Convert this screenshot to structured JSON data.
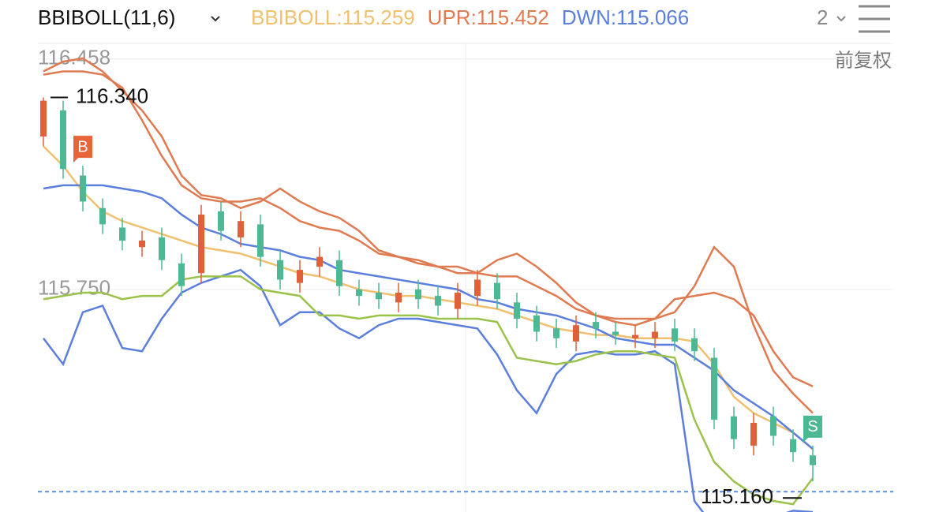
{
  "chart_data": {
    "type": "candlestick",
    "indicator": "BBIBOLL(11,6)",
    "period": "2",
    "adjust_label": "前复权",
    "ylim": [
      115.066,
      116.506
    ],
    "yticks": [
      116.458,
      {
        "value": 115.75,
        "label": "115.750"
      }
    ],
    "high_label": {
      "value": 116.34,
      "label": "116.340"
    },
    "low_label": {
      "value": 115.16,
      "label": "115.160"
    },
    "markers": [
      {
        "text": "B",
        "index": 2,
        "value": 116.13,
        "color": "#e8643a"
      },
      {
        "text": "S",
        "index": 39,
        "value": 115.27,
        "color": "#4cb894"
      }
    ],
    "up_color": "#e0603a",
    "down_color": "#4cb894",
    "open": [
      116.22,
      116.3,
      116.1,
      116.0,
      115.94,
      115.88,
      115.91,
      115.83,
      115.8,
      115.99,
      115.91,
      115.95,
      115.84,
      115.77,
      115.82,
      115.84,
      115.75,
      115.74,
      115.71,
      115.75,
      115.73,
      115.69,
      115.73,
      115.77,
      115.71,
      115.67,
      115.63,
      115.59,
      115.65,
      115.62,
      115.6,
      115.6,
      115.63,
      115.6,
      115.54,
      115.36,
      115.27,
      115.36,
      115.29,
      115.24
    ],
    "high": [
      116.34,
      116.33,
      116.13,
      116.03,
      115.97,
      115.93,
      115.94,
      115.86,
      116.01,
      116.02,
      115.99,
      115.98,
      115.87,
      115.84,
      115.88,
      115.87,
      115.78,
      115.77,
      115.77,
      115.78,
      115.76,
      115.77,
      115.81,
      115.8,
      115.74,
      115.7,
      115.66,
      115.67,
      115.68,
      115.65,
      115.64,
      115.65,
      115.66,
      115.63,
      115.57,
      115.39,
      115.37,
      115.39,
      115.32,
      115.27
    ],
    "low": [
      116.19,
      116.09,
      115.99,
      115.92,
      115.87,
      115.85,
      115.81,
      115.73,
      115.77,
      115.9,
      115.88,
      115.82,
      115.75,
      115.74,
      115.79,
      115.73,
      115.7,
      115.69,
      115.68,
      115.69,
      115.67,
      115.66,
      115.7,
      115.69,
      115.63,
      115.59,
      115.57,
      115.56,
      115.6,
      115.58,
      115.57,
      115.57,
      115.56,
      115.53,
      115.32,
      115.26,
      115.24,
      115.27,
      115.22,
      115.16
    ],
    "close": [
      116.33,
      116.12,
      116.02,
      115.95,
      115.9,
      115.9,
      115.84,
      115.76,
      115.98,
      115.93,
      115.96,
      115.85,
      115.78,
      115.81,
      115.85,
      115.76,
      115.73,
      115.72,
      115.74,
      115.72,
      115.7,
      115.74,
      115.78,
      115.72,
      115.66,
      115.62,
      115.6,
      115.64,
      115.63,
      115.61,
      115.61,
      115.62,
      115.59,
      115.56,
      115.35,
      115.29,
      115.34,
      115.3,
      115.25,
      115.21
    ],
    "series": [
      {
        "name": "BBIBOLL:115.259",
        "color": "#f0c070",
        "values": [
          116.19,
          116.13,
          116.05,
          115.99,
          115.96,
          115.94,
          115.92,
          115.9,
          115.88,
          115.87,
          115.86,
          115.84,
          115.82,
          115.8,
          115.79,
          115.77,
          115.75,
          115.74,
          115.73,
          115.73,
          115.72,
          115.71,
          115.7,
          115.69,
          115.67,
          115.65,
          115.63,
          115.62,
          115.61,
          115.61,
          115.6,
          115.6,
          115.6,
          115.59,
          115.52,
          115.42,
          115.37,
          115.34,
          115.31,
          115.259
        ]
      },
      {
        "name": "UPR:115.452",
        "color": "#e07a50",
        "values": [
          116.41,
          116.42,
          116.42,
          116.41,
          116.37,
          116.27,
          116.16,
          116.07,
          116.03,
          116.02,
          116.02,
          116.03,
          116.0,
          115.96,
          115.94,
          115.93,
          115.9,
          115.86,
          115.85,
          115.83,
          115.82,
          115.82,
          115.8,
          115.79,
          115.79,
          115.76,
          115.73,
          115.69,
          115.67,
          115.65,
          115.64,
          115.66,
          115.72,
          115.73,
          115.74,
          115.72,
          115.67,
          115.56,
          115.48,
          115.452
        ]
      },
      {
        "name": "DWN:115.066",
        "color": "#5b7fdc",
        "values": [
          115.6,
          115.52,
          115.68,
          115.7,
          115.57,
          115.56,
          115.66,
          115.74,
          115.77,
          115.79,
          115.81,
          115.76,
          115.64,
          115.68,
          115.68,
          115.63,
          115.6,
          115.64,
          115.66,
          115.66,
          115.65,
          115.64,
          115.63,
          115.55,
          115.44,
          115.37,
          115.49,
          115.55,
          115.56,
          115.55,
          115.55,
          115.56,
          115.52,
          115.1,
          115.02,
          115.0,
          115.01,
          115.05,
          115.07,
          115.066
        ]
      },
      {
        "color": "#e07a50",
        "values": [
          116.42,
          116.45,
          116.46,
          116.42,
          116.36,
          116.3,
          116.22,
          116.1,
          116.04,
          116.03,
          116.0,
          116.02,
          116.06,
          116.02,
          115.99,
          115.97,
          115.93,
          115.87,
          115.85,
          115.84,
          115.82,
          115.8,
          115.8,
          115.84,
          115.86,
          115.82,
          115.77,
          115.71,
          115.67,
          115.66,
          115.66,
          115.66,
          115.68,
          115.76,
          115.88,
          115.82,
          115.64,
          115.5,
          115.43,
          115.37
        ]
      },
      {
        "color": "#5b7fdc",
        "values": [
          116.06,
          116.07,
          116.07,
          116.07,
          116.06,
          116.05,
          116.03,
          115.98,
          115.94,
          115.92,
          115.89,
          115.88,
          115.87,
          115.85,
          115.84,
          115.81,
          115.8,
          115.79,
          115.78,
          115.77,
          115.76,
          115.75,
          115.72,
          115.71,
          115.69,
          115.68,
          115.67,
          115.65,
          115.63,
          115.6,
          115.59,
          115.58,
          115.58,
          115.54,
          115.5,
          115.44,
          115.4,
          115.36,
          115.31,
          115.26
        ]
      },
      {
        "color": "#9bc24a",
        "values": [
          115.72,
          115.73,
          115.74,
          115.74,
          115.72,
          115.73,
          115.73,
          115.78,
          115.79,
          115.79,
          115.79,
          115.75,
          115.74,
          115.73,
          115.67,
          115.67,
          115.66,
          115.67,
          115.67,
          115.67,
          115.66,
          115.66,
          115.66,
          115.65,
          115.54,
          115.53,
          115.52,
          115.53,
          115.55,
          115.56,
          115.56,
          115.55,
          115.54,
          115.35,
          115.22,
          115.16,
          115.12,
          115.1,
          115.09,
          115.17
        ]
      }
    ]
  }
}
